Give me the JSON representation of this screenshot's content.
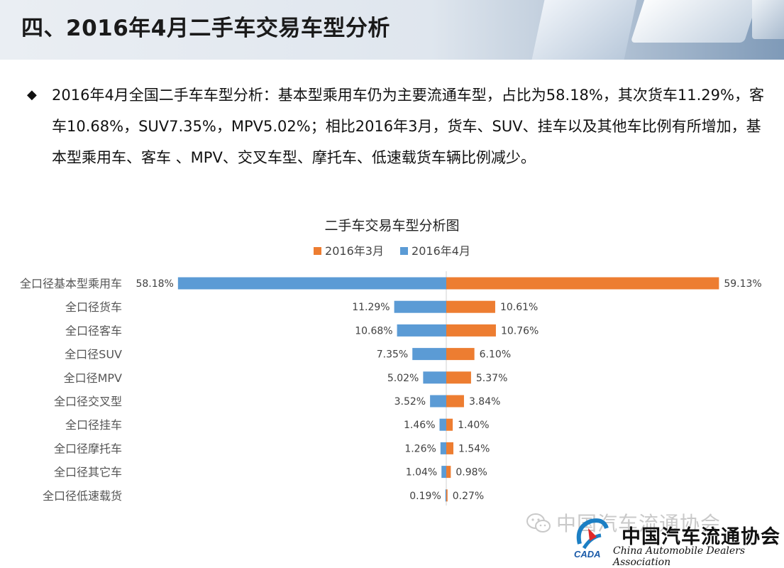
{
  "header": {
    "title": "四、2016年4月二手车交易车型分析"
  },
  "bullet": {
    "text": "2016年4月全国二手车车型分析：基本型乘用车仍为主要流通车型，占比为58.18%，其次货车11.29%，客车10.68%，SUV7.35%，MPV5.02%；相比2016年3月，货车、SUV、挂车以及其他车比例有所增加，基本型乘用车、客车 、MPV、交叉车型、摩托车、低速载货车辆比例减少。"
  },
  "colors": {
    "march": "#ed7d31",
    "april": "#5b9bd5"
  },
  "chart_data": {
    "type": "bar",
    "orientation": "horizontal-butterfly",
    "title": "二手车交易车型分析图",
    "legend_position": "top",
    "categories": [
      "全口径基本型乘用车",
      "全口径货车",
      "全口径客车",
      "全口径SUV",
      "全口径MPV",
      "全口径交叉型",
      "全口径挂车",
      "全口径摩托车",
      "全口径其它车",
      "全口径低速载货"
    ],
    "series": [
      {
        "name": "2016年3月",
        "side": "right",
        "values": [
          59.13,
          10.61,
          10.76,
          6.1,
          5.37,
          3.84,
          1.4,
          1.54,
          0.98,
          0.27
        ],
        "labels": [
          "59.13%",
          "10.61%",
          "10.76%",
          "6.10%",
          "5.37%",
          "3.84%",
          "1.40%",
          "1.54%",
          "0.98%",
          "0.27%"
        ]
      },
      {
        "name": "2016年4月",
        "side": "left",
        "values": [
          58.18,
          11.29,
          10.68,
          7.35,
          5.02,
          3.52,
          1.46,
          1.26,
          1.04,
          0.19
        ],
        "labels": [
          "58.18%",
          "11.29%",
          "10.68%",
          "7.35%",
          "5.02%",
          "3.52%",
          "1.46%",
          "1.26%",
          "1.04%",
          "0.19%"
        ]
      }
    ]
  },
  "footer": {
    "watermark": "中国汽车流通协会",
    "logo_cn": "中国汽车流通协会",
    "logo_en": "China Automobile Dealers Association",
    "logo_mark": "CADA"
  }
}
